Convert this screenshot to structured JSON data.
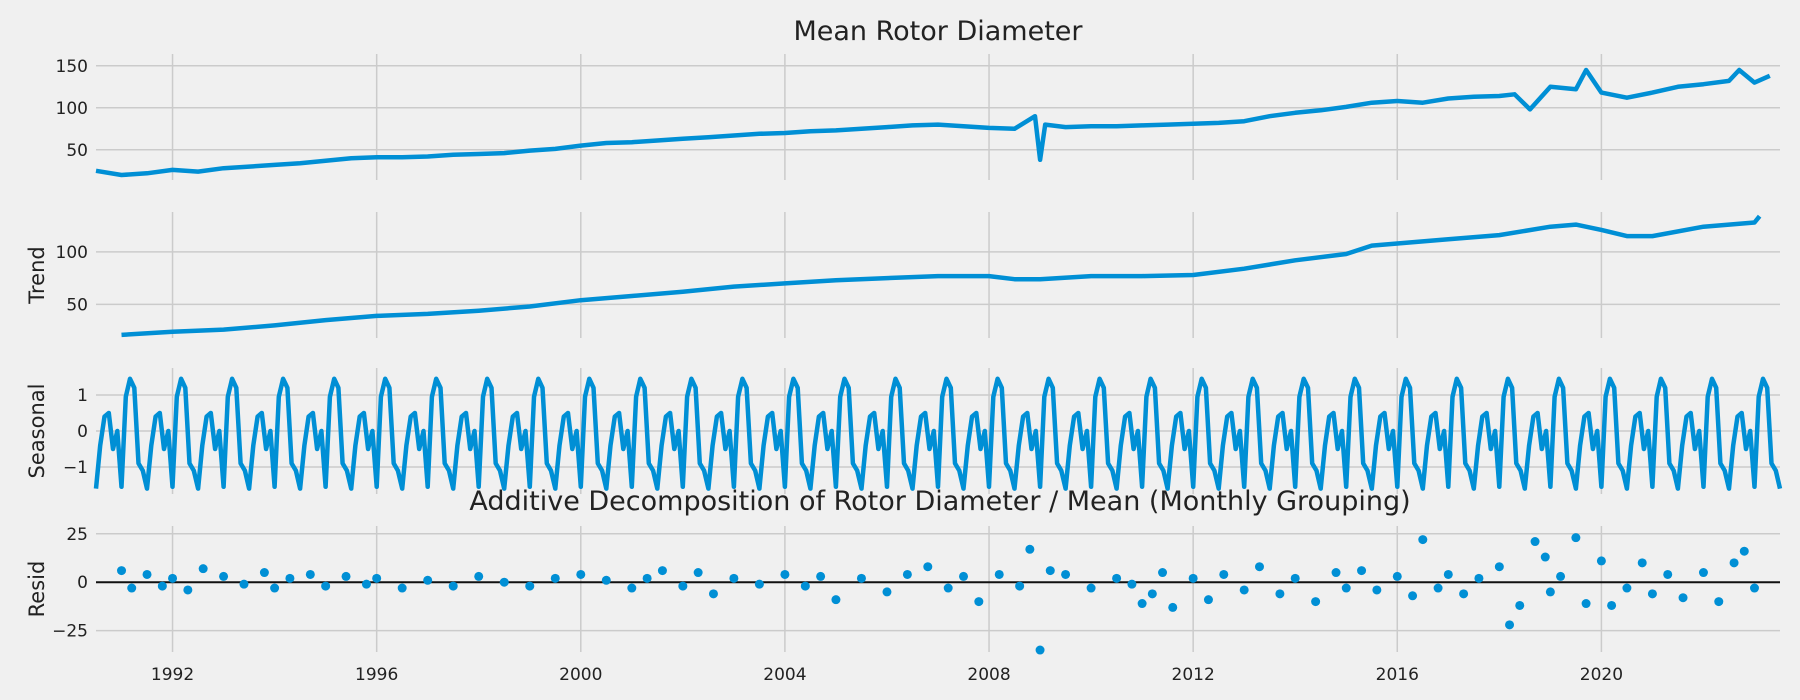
{
  "figure": {
    "suptitle": "Additive Decomposition of Rotor Diameter / Mean (Monthly Grouping)",
    "background": "#f0f0f0",
    "grid_color": "#cbcbcb",
    "line_color": "#008fd5"
  },
  "chart_data": [
    {
      "type": "line",
      "title": "Mean Rotor Diameter",
      "ylabel": "",
      "xlim": [
        1990.5,
        2023.5
      ],
      "ylim": [
        14,
        164
      ],
      "yticks": [
        50,
        100,
        150
      ],
      "x_ticks": [
        1992,
        1996,
        2000,
        2004,
        2008,
        2012,
        2016,
        2020
      ],
      "grid": true,
      "series": [
        {
          "x": [
            1990.5,
            1991,
            1991.5,
            1992,
            1992.5,
            1993,
            1993.5,
            1994,
            1994.5,
            1995,
            1995.5,
            1996,
            1996.5,
            1997,
            1997.5,
            1998,
            1998.5,
            1999,
            1999.5,
            2000,
            2000.5,
            2001,
            2001.5,
            2002,
            2002.5,
            2003,
            2003.5,
            2004,
            2004.5,
            2005,
            2005.5,
            2006,
            2006.5,
            2007,
            2007.5,
            2008,
            2008.5,
            2008.9,
            2009.0,
            2009.1,
            2009.5,
            2010,
            2010.5,
            2011,
            2011.5,
            2012,
            2012.5,
            2013,
            2013.5,
            2014,
            2014.5,
            2015,
            2015.5,
            2016,
            2016.5,
            2017,
            2017.5,
            2018,
            2018.3,
            2018.6,
            2019,
            2019.5,
            2019.7,
            2020,
            2020.5,
            2021,
            2021.5,
            2022,
            2022.5,
            2022.7,
            2023,
            2023.3
          ],
          "y": [
            25,
            20,
            22,
            26,
            24,
            28,
            30,
            32,
            34,
            37,
            40,
            41,
            41,
            42,
            44,
            45,
            46,
            49,
            51,
            55,
            58,
            59,
            61,
            63,
            65,
            67,
            69,
            70,
            72,
            73,
            75,
            77,
            79,
            80,
            78,
            76,
            75,
            90,
            38,
            80,
            77,
            78,
            78,
            79,
            80,
            81,
            82,
            84,
            90,
            94,
            97,
            101,
            106,
            108,
            106,
            111,
            113,
            114,
            116,
            98,
            125,
            122,
            145,
            118,
            112,
            118,
            125,
            128,
            132,
            145,
            130,
            138
          ]
        }
      ]
    },
    {
      "type": "line",
      "title": "",
      "ylabel": "Trend",
      "xlim": [
        1990.5,
        2023.5
      ],
      "ylim": [
        18,
        138
      ],
      "yticks": [
        50,
        100
      ],
      "x_ticks": [
        1992,
        1996,
        2000,
        2004,
        2008,
        2012,
        2016,
        2020
      ],
      "grid": true,
      "series": [
        {
          "x": [
            1991,
            1992,
            1993,
            1994,
            1995,
            1996,
            1997,
            1998,
            1999,
            2000,
            2001,
            2002,
            2003,
            2004,
            2005,
            2006,
            2007,
            2008,
            2008.5,
            2009,
            2010,
            2011,
            2012,
            2013,
            2014,
            2015,
            2015.5,
            2016,
            2017,
            2018,
            2019,
            2019.5,
            2020,
            2020.5,
            2021,
            2022,
            2023,
            2023.1
          ],
          "y": [
            21,
            24,
            26,
            30,
            35,
            39,
            41,
            44,
            48,
            54,
            58,
            62,
            67,
            70,
            73,
            75,
            77,
            77,
            74,
            74,
            77,
            77,
            78,
            84,
            92,
            98,
            106,
            108,
            112,
            116,
            124,
            126,
            121,
            115,
            115,
            124,
            128,
            134
          ]
        }
      ]
    },
    {
      "type": "line",
      "title": "",
      "ylabel": "Seasonal",
      "xlim": [
        1990.5,
        2023.5
      ],
      "ylim": [
        -1.75,
        1.75
      ],
      "yticks": [
        -1,
        0,
        1
      ],
      "x_ticks": [
        1992,
        1996,
        2000,
        2004,
        2008,
        2012,
        2016,
        2020
      ],
      "grid": true,
      "period": 1,
      "series": [
        {
          "x": [
            0,
            0.083,
            0.167,
            0.25,
            0.333,
            0.417,
            0.5,
            0.583,
            0.667,
            0.75,
            0.833,
            0.917
          ],
          "y": [
            -1.6,
            -0.4,
            0.4,
            0.5,
            -0.5,
            0.0,
            -1.55,
            0.95,
            1.45,
            1.2,
            -0.9,
            -1.1
          ]
        }
      ]
    },
    {
      "type": "scatter",
      "title": "",
      "ylabel": "Resid",
      "xlim": [
        1990.5,
        2023.5
      ],
      "ylim": [
        -36,
        29
      ],
      "yticks": [
        -25,
        0,
        25
      ],
      "x_ticks": [
        1992,
        1996,
        2000,
        2004,
        2008,
        2012,
        2016,
        2020
      ],
      "grid": true,
      "series": [
        {
          "x": [
            1991.0,
            1991.2,
            1991.5,
            1991.8,
            1992.0,
            1992.3,
            1992.6,
            1993.0,
            1993.4,
            1993.8,
            1994.0,
            1994.3,
            1994.7,
            1995.0,
            1995.4,
            1995.8,
            1996.0,
            1996.5,
            1997.0,
            1997.5,
            1998.0,
            1998.5,
            1999.0,
            1999.5,
            2000.0,
            2000.5,
            2001.0,
            2001.3,
            2001.6,
            2002.0,
            2002.3,
            2002.6,
            2003.0,
            2003.5,
            2004.0,
            2004.4,
            2004.7,
            2005.0,
            2005.5,
            2006.0,
            2006.4,
            2006.8,
            2007.2,
            2007.5,
            2007.8,
            2008.2,
            2008.6,
            2008.8,
            2009.0,
            2009.2,
            2009.5,
            2010.0,
            2010.5,
            2010.8,
            2011.0,
            2011.2,
            2011.4,
            2011.6,
            2012.0,
            2012.3,
            2012.6,
            2013.0,
            2013.3,
            2013.7,
            2014.0,
            2014.4,
            2014.8,
            2015.0,
            2015.3,
            2015.6,
            2016.0,
            2016.3,
            2016.5,
            2016.8,
            2017.0,
            2017.3,
            2017.6,
            2018.0,
            2018.2,
            2018.4,
            2018.7,
            2018.9,
            2019.0,
            2019.2,
            2019.5,
            2019.7,
            2020.0,
            2020.2,
            2020.5,
            2020.8,
            2021.0,
            2021.3,
            2021.6,
            2022.0,
            2022.3,
            2022.6,
            2022.8,
            2023.0
          ],
          "y": [
            6,
            -3,
            4,
            -2,
            2,
            -4,
            7,
            3,
            -1,
            5,
            -3,
            2,
            4,
            -2,
            3,
            -1,
            2,
            -3,
            1,
            -2,
            3,
            0,
            -2,
            2,
            4,
            1,
            -3,
            2,
            6,
            -2,
            5,
            -6,
            2,
            -1,
            4,
            -2,
            3,
            -9,
            2,
            -5,
            4,
            8,
            -3,
            3,
            -10,
            4,
            -2,
            17,
            -35,
            6,
            4,
            -3,
            2,
            -1,
            -11,
            -6,
            5,
            -13,
            2,
            -9,
            4,
            -4,
            8,
            -6,
            2,
            -10,
            5,
            -3,
            6,
            -4,
            3,
            -7,
            22,
            -3,
            4,
            -6,
            2,
            8,
            -22,
            -12,
            21,
            13,
            -5,
            3,
            23,
            -11,
            11,
            -12,
            -3,
            10,
            -6,
            4,
            -8,
            5,
            -10,
            10,
            16,
            -3
          ]
        }
      ]
    }
  ],
  "x_tick_labels": [
    "1992",
    "1996",
    "2000",
    "2004",
    "2008",
    "2012",
    "2016",
    "2020"
  ]
}
